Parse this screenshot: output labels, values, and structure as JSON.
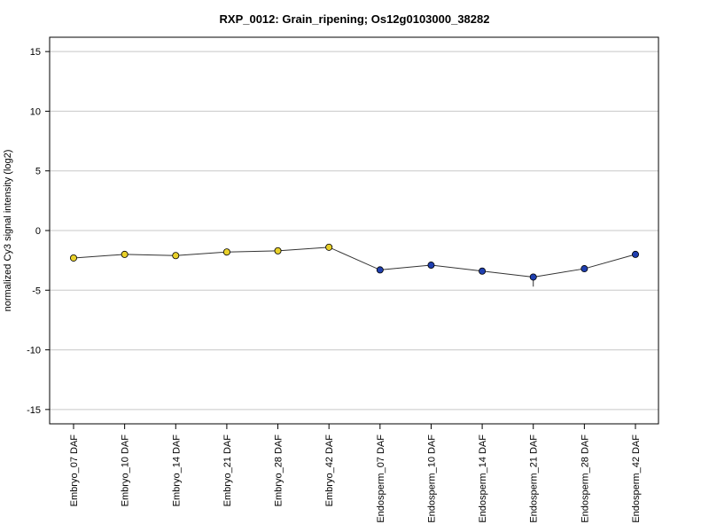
{
  "chart_data": {
    "type": "line",
    "title": "RXP_0012: Grain_ripening; Os12g0103000_38282",
    "xlabel": "",
    "ylabel": "normalized Cy3 signal intensity (log2)",
    "categories": [
      "Embryo_07 DAF",
      "Embryo_10 DAF",
      "Embryo_14 DAF",
      "Embryo_21 DAF",
      "Embryo_28 DAF",
      "Embryo_42 DAF",
      "Endosperm_07 DAF",
      "Endosperm_10 DAF",
      "Endosperm_14 DAF",
      "Endosperm_21 DAF",
      "Endosperm_28 DAF",
      "Endosperm_42 DAF"
    ],
    "values": [
      -2.3,
      -2.0,
      -2.1,
      -1.8,
      -1.7,
      -1.4,
      -3.3,
      -2.9,
      -3.4,
      -3.9,
      -3.2,
      -2.0
    ],
    "error_low": [
      -2.4,
      -2.1,
      -2.3,
      -1.9,
      -1.8,
      -1.5,
      -3.5,
      -3.2,
      -3.5,
      -4.7,
      -3.3,
      -2.1
    ],
    "error_high": [
      -2.2,
      -1.9,
      -1.9,
      -1.7,
      -1.6,
      -1.3,
      -3.0,
      -2.7,
      -3.3,
      -3.7,
      -3.1,
      -1.9
    ],
    "point_colors": [
      "#e8d02a",
      "#e8d02a",
      "#e8d02a",
      "#e8d02a",
      "#e8d02a",
      "#e8d02a",
      "#1f3faf",
      "#1f3faf",
      "#1f3faf",
      "#1f3faf",
      "#1f3faf",
      "#1f3faf"
    ],
    "yticks": [
      15,
      10,
      5,
      0,
      -5,
      -10,
      -15
    ],
    "ylim": [
      -16.2,
      16.2
    ],
    "grid": true,
    "line_color": "#333333"
  }
}
